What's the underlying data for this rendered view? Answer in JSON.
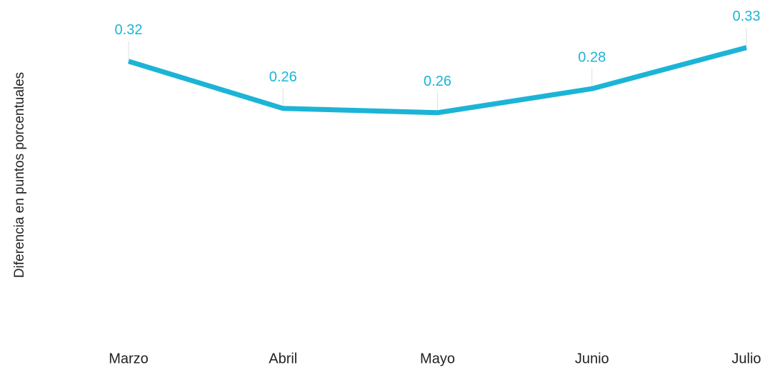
{
  "chart_data": {
    "type": "line",
    "y_label": "Diferencia en puntos porcentuales",
    "categories": [
      "Marzo",
      "Abril",
      "Mayo",
      "Junio",
      "Julio"
    ],
    "series": [
      {
        "name": null,
        "color": "#1cb4d6",
        "values": [
          0.316,
          0.261,
          0.256,
          0.284,
          0.332
        ],
        "value_labels": [
          "0.32",
          "0.26",
          "0.26",
          "0.28",
          "0.33"
        ]
      }
    ],
    "ylim": [
      0,
      0.38
    ]
  }
}
